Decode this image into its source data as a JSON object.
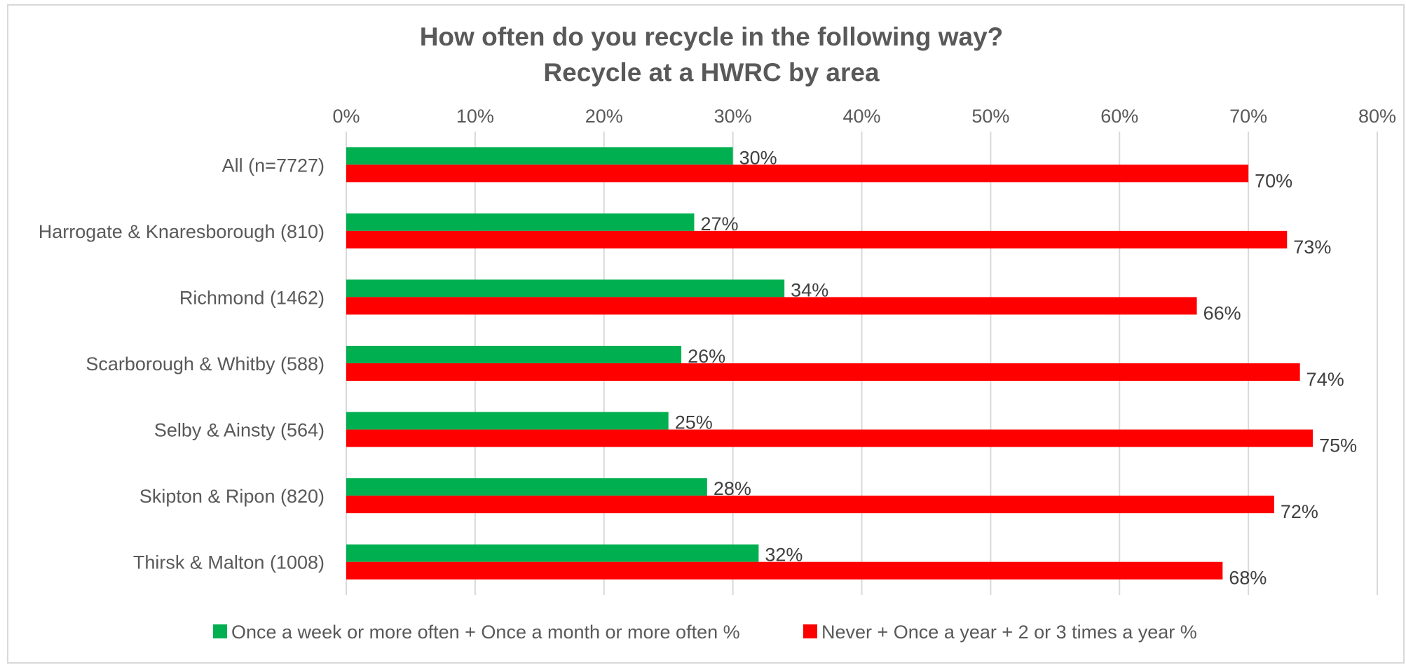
{
  "chart_data": {
    "type": "bar",
    "orientation": "horizontal",
    "title": "How often do you recycle in the following way?",
    "subtitle": "Recycle at a HWRC by area",
    "categories": [
      "All (n=7727)",
      "Harrogate & Knaresborough (810)",
      "Richmond (1462)",
      "Scarborough & Whitby (588)",
      "Selby & Ainsty (564)",
      "Skipton & Ripon (820)",
      "Thirsk & Malton (1008)"
    ],
    "series": [
      {
        "name": "Once a week or more often + Once a month or more often %",
        "color": "#00b050",
        "values": [
          30,
          27,
          34,
          26,
          25,
          28,
          32
        ],
        "labels": [
          "30%",
          "27%",
          "34%",
          "26%",
          "25%",
          "28%",
          "32%"
        ]
      },
      {
        "name": "Never + Once a year + 2 or 3 times a year %",
        "color": "#ff0000",
        "values": [
          70,
          73,
          66,
          74,
          75,
          72,
          68
        ],
        "labels": [
          "70%",
          "73%",
          "66%",
          "74%",
          "75%",
          "72%",
          "68%"
        ]
      }
    ],
    "xlim": [
      0,
      80
    ],
    "ticks": [
      0,
      10,
      20,
      30,
      40,
      50,
      60,
      70,
      80
    ],
    "tick_labels": [
      "0%",
      "10%",
      "20%",
      "30%",
      "40%",
      "50%",
      "60%",
      "70%",
      "80%"
    ],
    "axis_position": "top",
    "grid": true,
    "legend": "bottom-center"
  }
}
